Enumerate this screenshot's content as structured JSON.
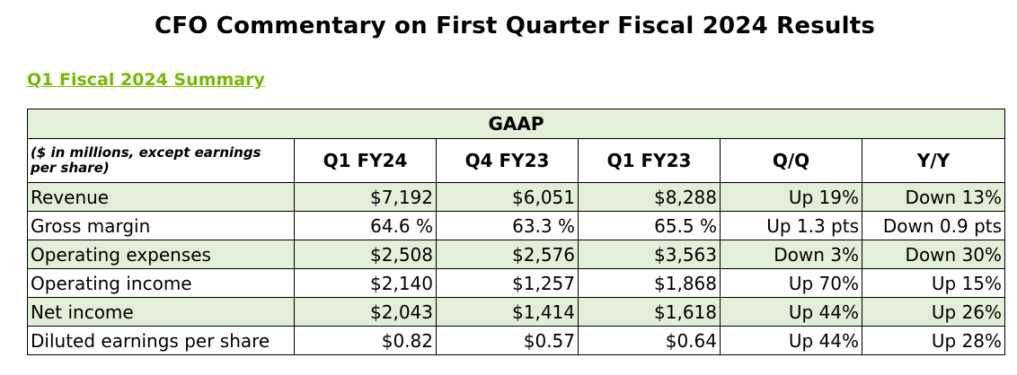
{
  "title": "CFO Commentary on First Quarter Fiscal 2024 Results",
  "section_link": "Q1 Fiscal 2024 Summary",
  "table": {
    "group_header": "GAAP",
    "unit_note": "($ in millions, except earnings per share)",
    "columns": [
      "Q1 FY24",
      "Q4 FY23",
      "Q1 FY23",
      "Q/Q",
      "Y/Y"
    ],
    "rows": [
      {
        "label": "Revenue",
        "values": [
          "$7,192",
          "$6,051",
          "$8,288",
          "Up 19%",
          "Down 13%"
        ]
      },
      {
        "label": "Gross margin",
        "values": [
          "64.6 %",
          "63.3 %",
          "65.5 %",
          "Up 1.3 pts",
          "Down 0.9 pts"
        ]
      },
      {
        "label": "Operating expenses",
        "values": [
          "$2,508",
          "$2,576",
          "$3,563",
          "Down 3%",
          "Down 30%"
        ]
      },
      {
        "label": "Operating income",
        "values": [
          "$2,140",
          "$1,257",
          "$1,868",
          "Up 70%",
          "Up 15%"
        ]
      },
      {
        "label": "Net income",
        "values": [
          "$2,043",
          "$1,414",
          "$1,618",
          "Up 44%",
          "Up 26%"
        ]
      },
      {
        "label": "Diluted earnings per share",
        "values": [
          "$0.82",
          "$0.57",
          "$0.64",
          "Up 44%",
          "Up 28%"
        ]
      }
    ]
  },
  "colors": {
    "accent": "#76b900",
    "row_shade": "#e2efd9"
  }
}
